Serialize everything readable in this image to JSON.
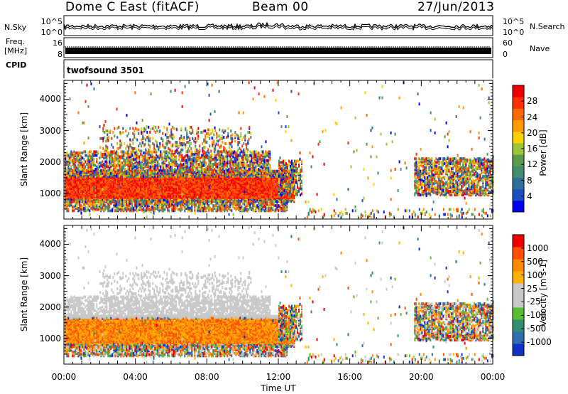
{
  "header": {
    "station": "Dome C East (fitACF)",
    "beam": "Beam 00",
    "date": "27/Jun/2013"
  },
  "strips": {
    "nsky_label": "N.Sky",
    "nsearch_label": "N.Search",
    "nsky_ticks": [
      "10^5",
      "10^0"
    ],
    "nsearch_ticks": [
      "10^5",
      "10^0"
    ],
    "freq_label_1": "Freq.",
    "freq_label_2": "[MHz]",
    "freq_ticks": [
      "16",
      "8"
    ],
    "nave_label": "Nave",
    "nave_ticks": [
      "60",
      "0"
    ],
    "cpid_label": "CPID",
    "cpid_value": "twofsound 3501"
  },
  "chart_data": [
    {
      "type": "heatmap",
      "ylabel": "Slant Range [km]",
      "yticks": [
        "4000",
        "3000",
        "2000",
        "1000"
      ],
      "ylim": [
        180,
        4600
      ],
      "colorbar_label": "Power [dB]",
      "colorbar_ticks": [
        "28",
        "24",
        "20",
        "16",
        "12",
        "8",
        "4"
      ],
      "colorbar_colors": [
        "#0000f0",
        "#1c4fc0",
        "#2f6f9a",
        "#3f8f6f",
        "#5a9c4a",
        "#9ec43c",
        "#ffd000",
        "#ff9a00",
        "#ff6a00",
        "#ff3000",
        "#ee0000"
      ]
    },
    {
      "type": "heatmap",
      "ylabel": "Slant Range [km]",
      "yticks": [
        "4000",
        "3000",
        "2000",
        "1000"
      ],
      "ylim": [
        180,
        4600
      ],
      "colorbar_label": "Velocity [m s-1]",
      "colorbar_ticks": [
        "1000",
        "500",
        "100",
        "25",
        "-25",
        "-100",
        "-500",
        "-1000"
      ],
      "colorbar_colors": [
        "#1030c8",
        "#2f6fb0",
        "#2f8f70",
        "#58c030",
        "#c8c8c8",
        "#c8c8c8",
        "#ffb000",
        "#ff8a00",
        "#ff5000",
        "#ee0000"
      ]
    }
  ],
  "x_axis": {
    "xlabel": "Time UT",
    "ticks": [
      "00:00",
      "04:00",
      "08:00",
      "12:00",
      "16:00",
      "20:00",
      "00:00"
    ]
  }
}
